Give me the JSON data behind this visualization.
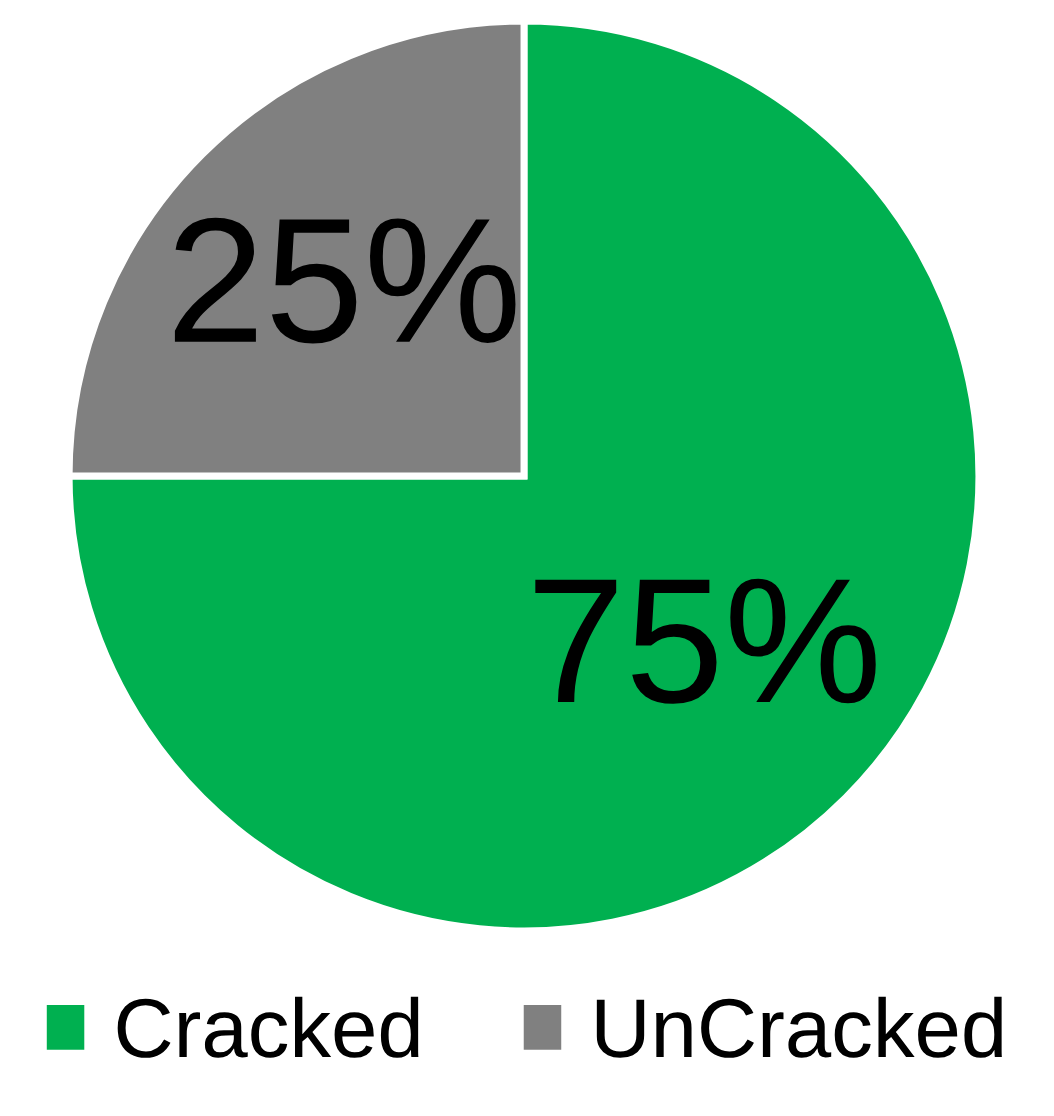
{
  "chart_data": {
    "type": "pie",
    "categories": [
      "Cracked",
      "UnCracked"
    ],
    "values": [
      75,
      25
    ],
    "colors": [
      "#00b050",
      "#808080"
    ],
    "value_labels": [
      "75%",
      "25%"
    ],
    "legend": "bottom"
  }
}
